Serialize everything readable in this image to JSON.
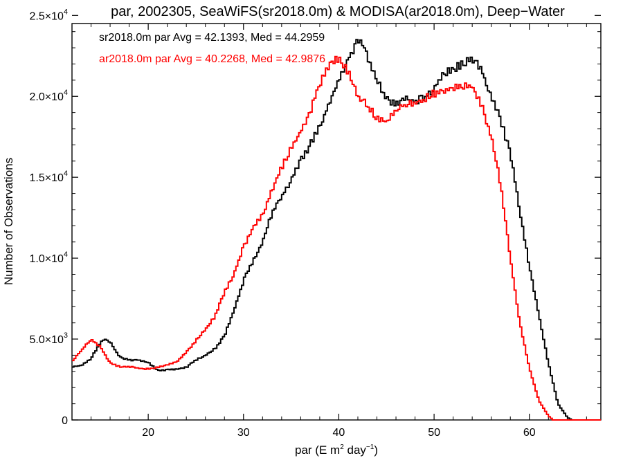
{
  "chart_data": {
    "type": "line",
    "title": "par, 2002305, SeaWiFS(sr2018.0m) & MODISA(ar2018.0m), Deep−Water",
    "xlabel": {
      "prefix": "par (E m",
      "sup1": "2",
      "mid": " day",
      "sup2": "−1",
      "suffix": ")"
    },
    "ylabel": "Number of Observations",
    "xlim": [
      12,
      67.5
    ],
    "ylim": [
      0,
      24500
    ],
    "x_ticks": [
      {
        "value": 20,
        "label": "20"
      },
      {
        "value": 30,
        "label": "30"
      },
      {
        "value": 40,
        "label": "40"
      },
      {
        "value": 50,
        "label": "50"
      },
      {
        "value": 60,
        "label": "60"
      }
    ],
    "y_ticks": [
      {
        "value": 0,
        "mant": "0",
        "exp": ""
      },
      {
        "value": 5000,
        "mant": "5.0×10",
        "exp": "3"
      },
      {
        "value": 10000,
        "mant": "1.0×10",
        "exp": "4"
      },
      {
        "value": 15000,
        "mant": "1.5×10",
        "exp": "4"
      },
      {
        "value": 20000,
        "mant": "2.0×10",
        "exp": "4"
      },
      {
        "value": 25000,
        "mant": "2.5×10",
        "exp": "4"
      }
    ],
    "annotations": [
      {
        "text": "sr2018.0m par Avg = 42.1393, Med = 44.2959",
        "color": "#000000"
      },
      {
        "text": "ar2018.0m par Avg = 40.2268, Med = 42.9876",
        "color": "#ff0000"
      }
    ],
    "series": [
      {
        "color": "#000000",
        "points": [
          [
            12,
            3300
          ],
          [
            13,
            3350
          ],
          [
            14,
            3800
          ],
          [
            15,
            4800
          ],
          [
            15.5,
            5000
          ],
          [
            16,
            4800
          ],
          [
            17,
            3900
          ],
          [
            18,
            3700
          ],
          [
            19,
            3700
          ],
          [
            20,
            3550
          ],
          [
            21,
            3050
          ],
          [
            22,
            3100
          ],
          [
            23,
            3150
          ],
          [
            24,
            3250
          ],
          [
            25,
            3700
          ],
          [
            26,
            4000
          ],
          [
            27,
            4400
          ],
          [
            28,
            5200
          ],
          [
            29,
            6800
          ],
          [
            30,
            8600
          ],
          [
            31,
            9800
          ],
          [
            32,
            11000
          ],
          [
            33,
            12800
          ],
          [
            34,
            13800
          ],
          [
            35,
            14800
          ],
          [
            36,
            16000
          ],
          [
            37,
            17000
          ],
          [
            38,
            18200
          ],
          [
            39,
            19500
          ],
          [
            40,
            21000
          ],
          [
            41,
            22300
          ],
          [
            42,
            23500
          ],
          [
            42.5,
            23300
          ],
          [
            43,
            22500
          ],
          [
            44,
            21000
          ],
          [
            45,
            19800
          ],
          [
            46,
            19600
          ],
          [
            47,
            19900
          ],
          [
            48,
            19700
          ],
          [
            49,
            19900
          ],
          [
            50,
            20500
          ],
          [
            51,
            21300
          ],
          [
            52,
            21700
          ],
          [
            53,
            22000
          ],
          [
            54,
            22300
          ],
          [
            55,
            21600
          ],
          [
            56,
            20000
          ],
          [
            57,
            18500
          ],
          [
            58,
            16500
          ],
          [
            59,
            13000
          ],
          [
            60,
            9500
          ],
          [
            61,
            6500
          ],
          [
            62,
            3500
          ],
          [
            63,
            1000
          ],
          [
            64,
            150
          ],
          [
            64.5,
            0
          ],
          [
            67.5,
            0
          ]
        ]
      },
      {
        "color": "#ff0000",
        "points": [
          [
            12,
            3600
          ],
          [
            13,
            4300
          ],
          [
            14,
            5000
          ],
          [
            15,
            4500
          ],
          [
            16,
            3500
          ],
          [
            17,
            3300
          ],
          [
            18,
            3300
          ],
          [
            19,
            3200
          ],
          [
            20,
            3150
          ],
          [
            21,
            3250
          ],
          [
            22,
            3400
          ],
          [
            23,
            3600
          ],
          [
            24,
            4200
          ],
          [
            25,
            4900
          ],
          [
            26,
            5600
          ],
          [
            27,
            6400
          ],
          [
            28,
            7900
          ],
          [
            29,
            9000
          ],
          [
            30,
            10700
          ],
          [
            31,
            11800
          ],
          [
            32,
            12700
          ],
          [
            33,
            14200
          ],
          [
            34,
            15600
          ],
          [
            35,
            16800
          ],
          [
            36,
            17800
          ],
          [
            37,
            19000
          ],
          [
            38,
            20800
          ],
          [
            39,
            22000
          ],
          [
            40,
            22400
          ],
          [
            41,
            21500
          ],
          [
            42,
            20000
          ],
          [
            43,
            19400
          ],
          [
            44,
            18700
          ],
          [
            45,
            18400
          ],
          [
            46,
            19200
          ],
          [
            47,
            19500
          ],
          [
            48,
            19600
          ],
          [
            49,
            19800
          ],
          [
            50,
            20200
          ],
          [
            51,
            20300
          ],
          [
            52,
            20500
          ],
          [
            53,
            20700
          ],
          [
            54,
            20600
          ],
          [
            55,
            19500
          ],
          [
            56,
            17500
          ],
          [
            57,
            14500
          ],
          [
            58,
            10000
          ],
          [
            59,
            6000
          ],
          [
            60,
            3200
          ],
          [
            61,
            1200
          ],
          [
            62,
            250
          ],
          [
            62.5,
            0
          ],
          [
            67.5,
            0
          ]
        ]
      }
    ]
  }
}
